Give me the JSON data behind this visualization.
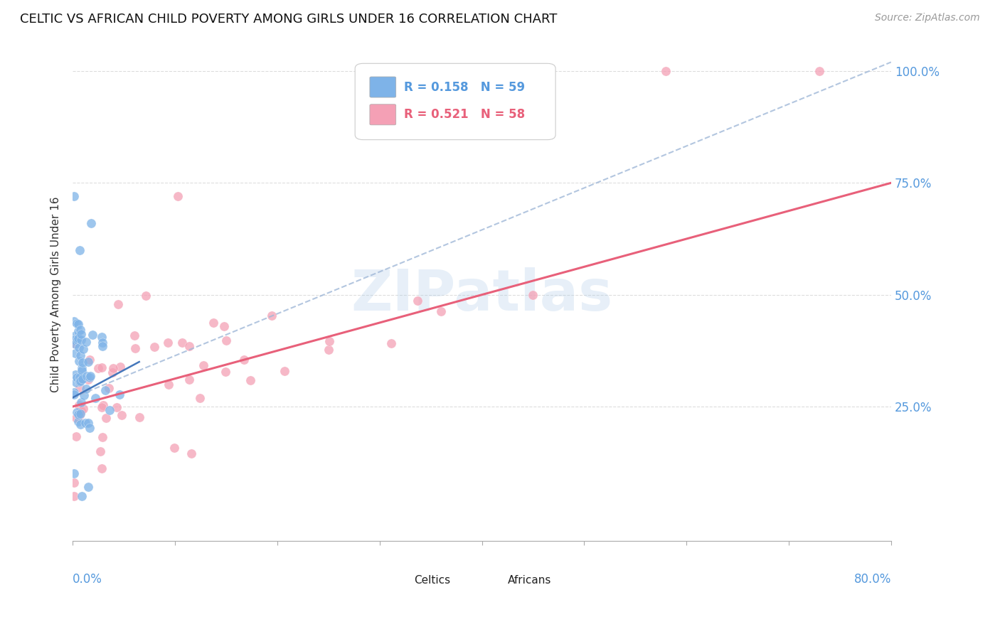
{
  "title": "CELTIC VS AFRICAN CHILD POVERTY AMONG GIRLS UNDER 16 CORRELATION CHART",
  "source": "Source: ZipAtlas.com",
  "ylabel": "Child Poverty Among Girls Under 16",
  "xlim": [
    0.0,
    0.8
  ],
  "ylim": [
    -0.05,
    1.05
  ],
  "ytick_pos": [
    0.25,
    0.5,
    0.75,
    1.0
  ],
  "ytick_labels": [
    "25.0%",
    "50.0%",
    "75.0%",
    "100.0%"
  ],
  "celtics_R": 0.158,
  "celtics_N": 59,
  "africans_R": 0.521,
  "africans_N": 58,
  "celtics_color": "#7eb3e8",
  "africans_color": "#f4a0b5",
  "celtics_line_color": "#a0b8d8",
  "africans_line_color": "#e8607a",
  "background_color": "#ffffff",
  "watermark": "ZIPatlas",
  "watermark_color": "#b0cce8",
  "grid_color": "#dddddd",
  "celtics_trendline_x": [
    0.0,
    0.8
  ],
  "celtics_trendline_y": [
    0.27,
    1.02
  ],
  "africans_trendline_x": [
    0.0,
    0.8
  ],
  "africans_trendline_y": [
    0.25,
    0.75
  ]
}
